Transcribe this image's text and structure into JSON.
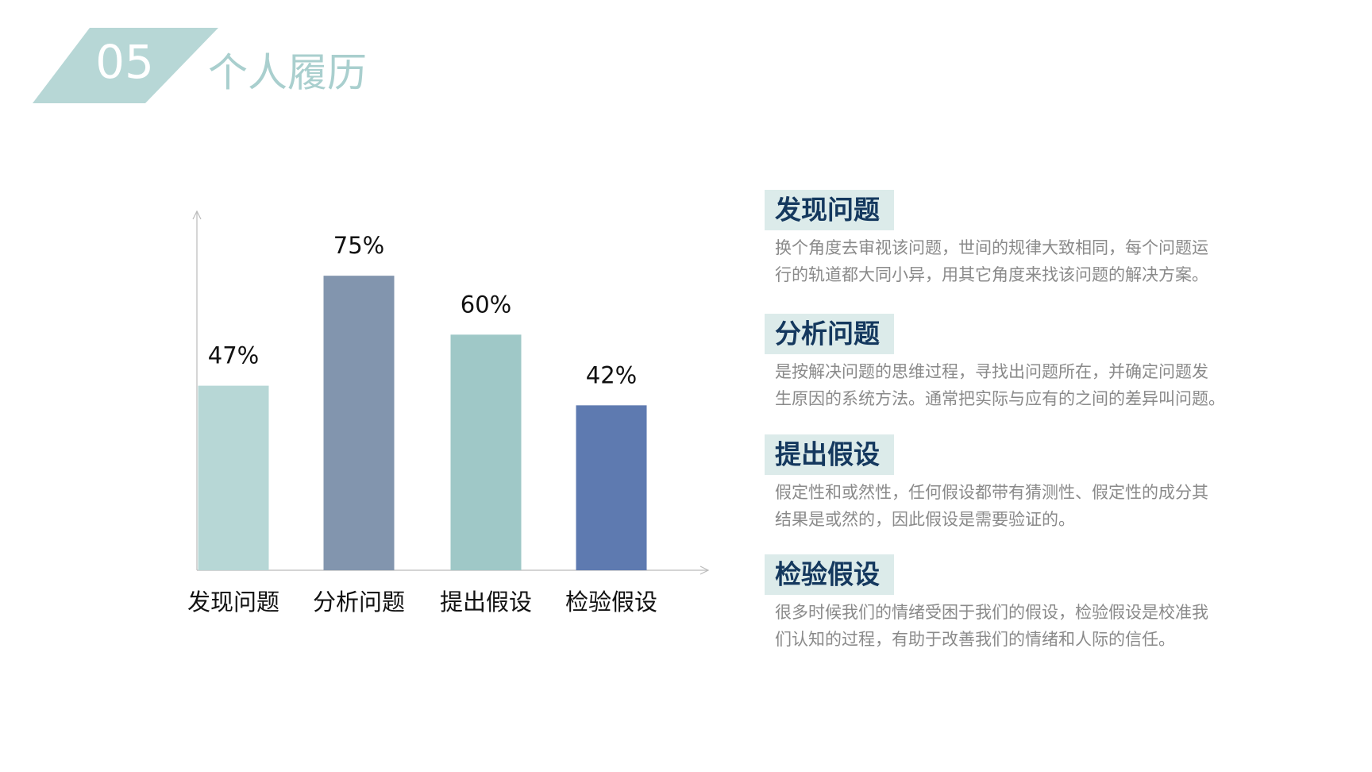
{
  "header": {
    "number": "05",
    "title": "个人履历"
  },
  "chart_data": {
    "type": "bar",
    "categories": [
      "发现问题",
      "分析问题",
      "提出假设",
      "检验假设"
    ],
    "values": [
      47,
      75,
      60,
      42
    ],
    "value_labels": [
      "47%",
      "75%",
      "60%",
      "42%"
    ],
    "colors": [
      "#b7d7d6",
      "#8295ae",
      "#9fc8c7",
      "#5e7ab0"
    ],
    "ylim": [
      0,
      90
    ]
  },
  "items": [
    {
      "title": "发现问题",
      "lines": [
        "换个角度去审视该问题，世间的规律大致相同，每个问题运",
        "行的轨道都大同小异，用其它角度来找该问题的解决方案。"
      ]
    },
    {
      "title": "分析问题",
      "lines": [
        "是按解决问题的思维过程，寻找出问题所在，并确定问题发",
        "生原因的系统方法。通常把实际与应有的之间的差异叫问题。"
      ]
    },
    {
      "title": "提出假设",
      "lines": [
        "假定性和或然性，任何假设都带有猜测性、假定性的成分其",
        "结果是或然的，因此假设是需要验证的。"
      ]
    },
    {
      "title": "检验假设",
      "lines": [
        "很多时候我们的情绪受困于我们的假设，检验假设是校准我",
        "们认知的过程，有助于改善我们的情绪和人际的信任。"
      ]
    }
  ]
}
